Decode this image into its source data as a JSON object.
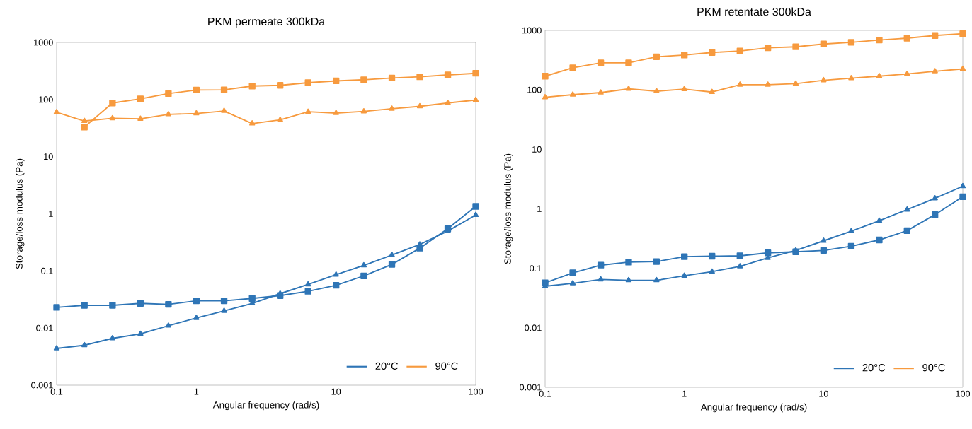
{
  "chart_data": [
    {
      "type": "line",
      "title": "PKM permeate 300kDa",
      "xlabel": "Angular frequency (rad/s)",
      "ylabel": "Storage/loss modulus (Pa)",
      "log": "xy",
      "grid": false,
      "legend": "bottom right",
      "x": [
        0.1,
        0.158,
        0.251,
        0.398,
        0.631,
        1,
        1.58,
        2.51,
        3.98,
        6.31,
        10,
        15.8,
        25.1,
        39.8,
        63.1,
        100
      ],
      "xlim": [
        0.1,
        100
      ],
      "xticks": [
        0.1,
        1,
        10,
        100
      ],
      "ylim": [
        0.001,
        1000
      ],
      "yticks": [
        0.001,
        0.01,
        0.1,
        1,
        10,
        100,
        1000
      ],
      "series": [
        {
          "name": "20°C",
          "color": "#2e75b6",
          "marker": "square",
          "values": [
            0.023,
            0.025,
            0.025,
            0.027,
            0.026,
            0.03,
            0.03,
            0.033,
            0.037,
            0.044,
            0.056,
            0.082,
            0.13,
            0.25,
            0.55,
            1.35
          ]
        },
        {
          "color": "#2e75b6",
          "marker": "triangle",
          "values": [
            0.0044,
            0.005,
            0.0066,
            0.0079,
            0.011,
            0.015,
            0.02,
            0.027,
            0.04,
            0.058,
            0.086,
            0.125,
            0.19,
            0.29,
            0.5,
            0.95
          ]
        },
        {
          "name": "90°C",
          "color": "#f79a3e",
          "marker": "square",
          "values": [
            null,
            33,
            87,
            103,
            127,
            147,
            148,
            172,
            177,
            197,
            212,
            222,
            238,
            250,
            270,
            288
          ]
        },
        {
          "color": "#f79a3e",
          "marker": "triangle",
          "values": [
            60,
            42,
            47,
            46,
            55,
            57,
            63,
            38,
            44,
            61,
            58,
            62,
            69,
            76,
            87,
            98
          ]
        }
      ]
    },
    {
      "type": "line",
      "title": "PKM retentate 300kDa",
      "xlabel": "Angular frequency (rad/s)",
      "ylabel": "Storage/loss modulus (Pa)",
      "log": "xy",
      "grid": false,
      "legend": "bottom right",
      "x": [
        0.1,
        0.158,
        0.251,
        0.398,
        0.631,
        1,
        1.58,
        2.51,
        3.98,
        6.31,
        10,
        15.8,
        25.1,
        39.8,
        63.1,
        100
      ],
      "xlim": [
        0.1,
        100
      ],
      "xticks": [
        0.1,
        1,
        10,
        100
      ],
      "ylim": [
        0.001,
        1000
      ],
      "yticks": [
        0.001,
        0.01,
        0.1,
        1,
        10,
        100,
        1000
      ],
      "series": [
        {
          "name": "20°C",
          "color": "#2e75b6",
          "marker": "square",
          "values": [
            0.057,
            0.084,
            0.113,
            0.127,
            0.13,
            0.157,
            0.16,
            0.162,
            0.182,
            0.19,
            0.2,
            0.235,
            0.3,
            0.43,
            0.8,
            1.6
          ]
        },
        {
          "color": "#2e75b6",
          "marker": "triangle",
          "values": [
            0.05,
            0.056,
            0.065,
            0.063,
            0.063,
            0.075,
            0.088,
            0.108,
            0.15,
            0.2,
            0.29,
            0.42,
            0.63,
            0.97,
            1.5,
            2.4
          ]
        },
        {
          "name": "90°C",
          "color": "#f79a3e",
          "marker": "square",
          "values": [
            170,
            235,
            285,
            285,
            360,
            385,
            425,
            450,
            510,
            530,
            590,
            630,
            690,
            740,
            820,
            880
          ]
        },
        {
          "color": "#f79a3e",
          "marker": "triangle",
          "values": [
            75,
            83,
            90,
            104,
            95,
            103,
            92,
            122,
            122,
            127,
            145,
            157,
            170,
            185,
            205,
            225
          ]
        }
      ]
    }
  ]
}
